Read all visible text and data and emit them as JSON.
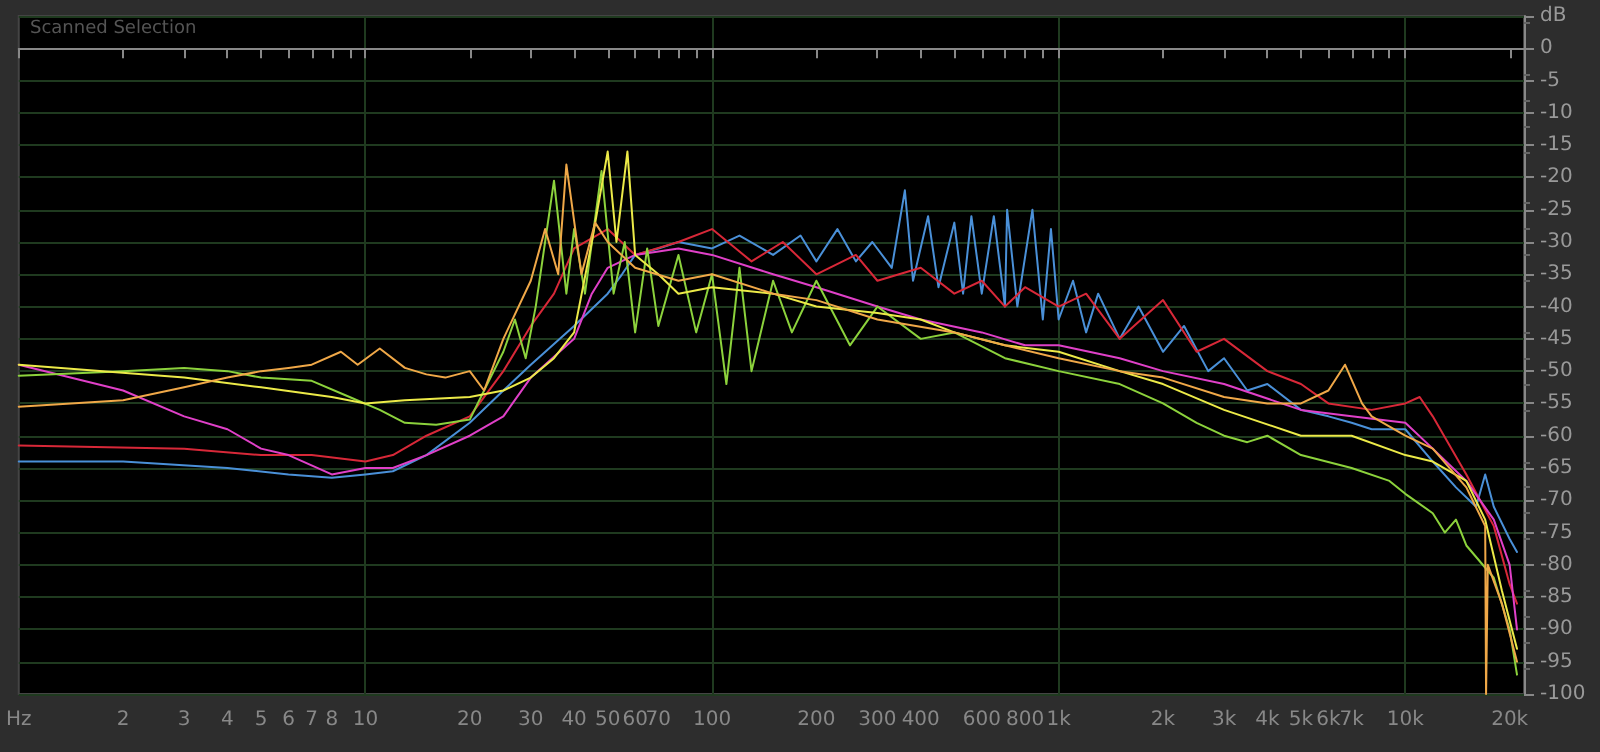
{
  "chart_data": {
    "type": "line",
    "title": "Scanned Selection",
    "log": "x",
    "grid": true,
    "marker": "none",
    "line_style": "solid",
    "xlim": [
      1,
      22000
    ],
    "ylim": [
      -100,
      5
    ],
    "xticks": [
      {
        "value": 1,
        "label": "Hz"
      },
      2,
      3,
      4,
      5,
      6,
      7,
      8,
      {
        "value": 9,
        "label": null
      },
      10,
      20,
      30,
      40,
      50,
      60,
      70,
      {
        "value": 80,
        "label": null
      },
      {
        "value": 90,
        "label": null
      },
      100,
      200,
      300,
      400,
      {
        "value": 500,
        "label": null
      },
      600,
      {
        "value": 700,
        "label": null
      },
      800,
      {
        "value": 900,
        "label": null
      },
      {
        "value": 1000,
        "label": "1k"
      },
      {
        "value": 2000,
        "label": "2k"
      },
      {
        "value": 3000,
        "label": "3k"
      },
      {
        "value": 4000,
        "label": "4k"
      },
      {
        "value": 5000,
        "label": "5k"
      },
      {
        "value": 6000,
        "label": "6k"
      },
      {
        "value": 7000,
        "label": "7k"
      },
      {
        "value": 8000,
        "label": null
      },
      {
        "value": 9000,
        "label": null
      },
      {
        "value": 10000,
        "label": "10k"
      },
      {
        "value": 20000,
        "label": "20k"
      }
    ],
    "yticks": [
      -100,
      -95,
      -90,
      -85,
      -80,
      -75,
      -70,
      -65,
      -60,
      -55,
      -50,
      -45,
      -40,
      -35,
      -30,
      -25,
      -20,
      -15,
      -10,
      -5,
      0,
      {
        "value": 5,
        "label": "dB"
      }
    ],
    "series": [
      {
        "color": "#4a90d8",
        "x": [
          1,
          2,
          4,
          6,
          8,
          10,
          12,
          15,
          20,
          25,
          30,
          40,
          50,
          55,
          60,
          70,
          80,
          100,
          120,
          150,
          180,
          200,
          230,
          260,
          290,
          330,
          360,
          380,
          420,
          450,
          500,
          530,
          560,
          600,
          650,
          700,
          710,
          760,
          840,
          900,
          950,
          1000,
          1100,
          1200,
          1300,
          1500,
          1700,
          2000,
          2300,
          2700,
          3000,
          3500,
          4000,
          5000,
          6000,
          7000,
          8000,
          10000,
          12000,
          14000,
          16000,
          17000,
          18000,
          20000,
          21000
        ],
        "values": [
          -64,
          -64,
          -65,
          -66,
          -66.5,
          -66,
          -65.5,
          -63,
          -58,
          -53,
          -49,
          -43,
          -38,
          -35,
          -32,
          -31,
          -30,
          -31,
          -29,
          -32,
          -29,
          -33,
          -28,
          -33,
          -30,
          -34,
          -22,
          -36,
          -26,
          -37,
          -27,
          -38,
          -26,
          -38,
          -26,
          -40,
          -25,
          -40,
          -25,
          -42,
          -28,
          -42,
          -36,
          -44,
          -38,
          -45,
          -40,
          -47,
          -43,
          -50,
          -48,
          -53,
          -52,
          -56,
          -57,
          -58,
          -59,
          -59,
          -64,
          -68,
          -71,
          -66,
          -71,
          -76,
          -78
        ]
      },
      {
        "color": "#d82838",
        "x": [
          1,
          3,
          5,
          7,
          10,
          12,
          15,
          20,
          25,
          30,
          35,
          40,
          50,
          60,
          80,
          100,
          130,
          160,
          200,
          260,
          300,
          400,
          500,
          600,
          700,
          800,
          1000,
          1200,
          1500,
          2000,
          2500,
          3000,
          4000,
          5000,
          6000,
          8000,
          10000,
          11000,
          12000,
          15000,
          18000,
          20000,
          21000
        ],
        "values": [
          -61.5,
          -62,
          -63,
          -63,
          -64,
          -63,
          -60,
          -57,
          -50,
          -43,
          -38,
          -31,
          -28,
          -32,
          -30,
          -28,
          -33,
          -30,
          -35,
          -32,
          -36,
          -34,
          -38,
          -36,
          -40,
          -37,
          -40,
          -38,
          -45,
          -39,
          -47,
          -45,
          -50,
          -52,
          -55,
          -56,
          -55,
          -54,
          -57,
          -66,
          -74,
          -83,
          -86
        ]
      },
      {
        "color": "#e040c8",
        "x": [
          1,
          2,
          3,
          4,
          5,
          6,
          8,
          10,
          12,
          15,
          20,
          25,
          30,
          40,
          45,
          50,
          60,
          80,
          100,
          150,
          200,
          300,
          400,
          600,
          800,
          1000,
          1500,
          2000,
          3000,
          5000,
          7000,
          10000,
          12000,
          15000,
          18000,
          20000,
          21000
        ],
        "values": [
          -49,
          -53,
          -57,
          -59,
          -62,
          -63,
          -66,
          -65,
          -65,
          -63,
          -60,
          -57,
          -51,
          -45,
          -38,
          -34,
          -32,
          -31,
          -32,
          -35,
          -37,
          -40,
          -42,
          -44,
          -46,
          -46,
          -48,
          -50,
          -52,
          -56,
          -57,
          -58,
          -62,
          -67,
          -73,
          -80,
          -90
        ]
      },
      {
        "color": "#8cd23c",
        "x": [
          1,
          2,
          3,
          4,
          5,
          7,
          9,
          11,
          13,
          16,
          20,
          22,
          25,
          27,
          29,
          31,
          35,
          38,
          40,
          43,
          48,
          52,
          56,
          60,
          65,
          70,
          80,
          90,
          100,
          110,
          120,
          130,
          150,
          170,
          200,
          250,
          300,
          400,
          500,
          700,
          1000,
          1500,
          2000,
          2500,
          3000,
          3500,
          4000,
          5000,
          7000,
          9000,
          10000,
          12000,
          13000,
          14000,
          15000,
          18000,
          20000,
          21000
        ],
        "values": [
          -50.7,
          -50,
          -49.5,
          -50,
          -51,
          -51.5,
          -54,
          -56,
          -58,
          -58.3,
          -57.5,
          -53,
          -47,
          -42,
          -48,
          -40,
          -20.5,
          -38,
          -28,
          -38,
          -19,
          -38,
          -30,
          -44,
          -31,
          -43,
          -32,
          -44,
          -35,
          -52,
          -34,
          -50,
          -36,
          -44,
          -36,
          -46,
          -40,
          -45,
          -44,
          -48,
          -50,
          -52,
          -55,
          -58,
          -60,
          -61,
          -60,
          -63,
          -65,
          -67,
          -69,
          -72,
          -75,
          -73,
          -77,
          -82,
          -90,
          -97
        ]
      },
      {
        "color": "#ecea48",
        "x": [
          1,
          3,
          5,
          8,
          10,
          13,
          20,
          25,
          30,
          35,
          40,
          45,
          50,
          53,
          57,
          60,
          70,
          80,
          100,
          150,
          200,
          300,
          400,
          500,
          700,
          1000,
          1500,
          2000,
          3000,
          5000,
          7000,
          10000,
          12000,
          15000,
          17000,
          19000,
          21000
        ],
        "values": [
          -49,
          -51,
          -52.5,
          -54,
          -55,
          -54.5,
          -54,
          -53,
          -51,
          -48,
          -44,
          -30,
          -16,
          -30,
          -16,
          -32,
          -35,
          -38,
          -37,
          -38,
          -40,
          -41,
          -42,
          -44,
          -46,
          -47,
          -50,
          -52,
          -56,
          -60,
          -60,
          -63,
          -64,
          -67,
          -73,
          -84,
          -93
        ]
      },
      {
        "color": "#f0a848",
        "x": [
          1,
          2,
          3,
          4,
          5,
          6,
          7,
          8.5,
          9.5,
          11,
          13,
          15,
          17,
          20,
          22,
          25,
          30,
          33,
          36,
          38,
          42,
          46,
          50,
          60,
          80,
          100,
          150,
          200,
          300,
          500,
          700,
          1000,
          1500,
          2000,
          3000,
          4000,
          5000,
          6000,
          6700,
          7500,
          8000,
          10000,
          12000,
          15000,
          17000,
          17100,
          17300,
          19000,
          21000
        ],
        "values": [
          -55.5,
          -54.5,
          -52.5,
          -51,
          -50,
          -49.5,
          -49,
          -47,
          -49,
          -46.5,
          -49.5,
          -50.5,
          -51,
          -50,
          -53,
          -45,
          -36,
          -28,
          -35,
          -18,
          -35,
          -27,
          -30,
          -34,
          -36,
          -35,
          -38,
          -39,
          -42,
          -44,
          -46,
          -48,
          -50,
          -51,
          -54,
          -55,
          -55,
          -53,
          -49,
          -55,
          -57,
          -60,
          -62,
          -68,
          -74,
          -100,
          -80,
          -86,
          -95
        ]
      }
    ]
  }
}
